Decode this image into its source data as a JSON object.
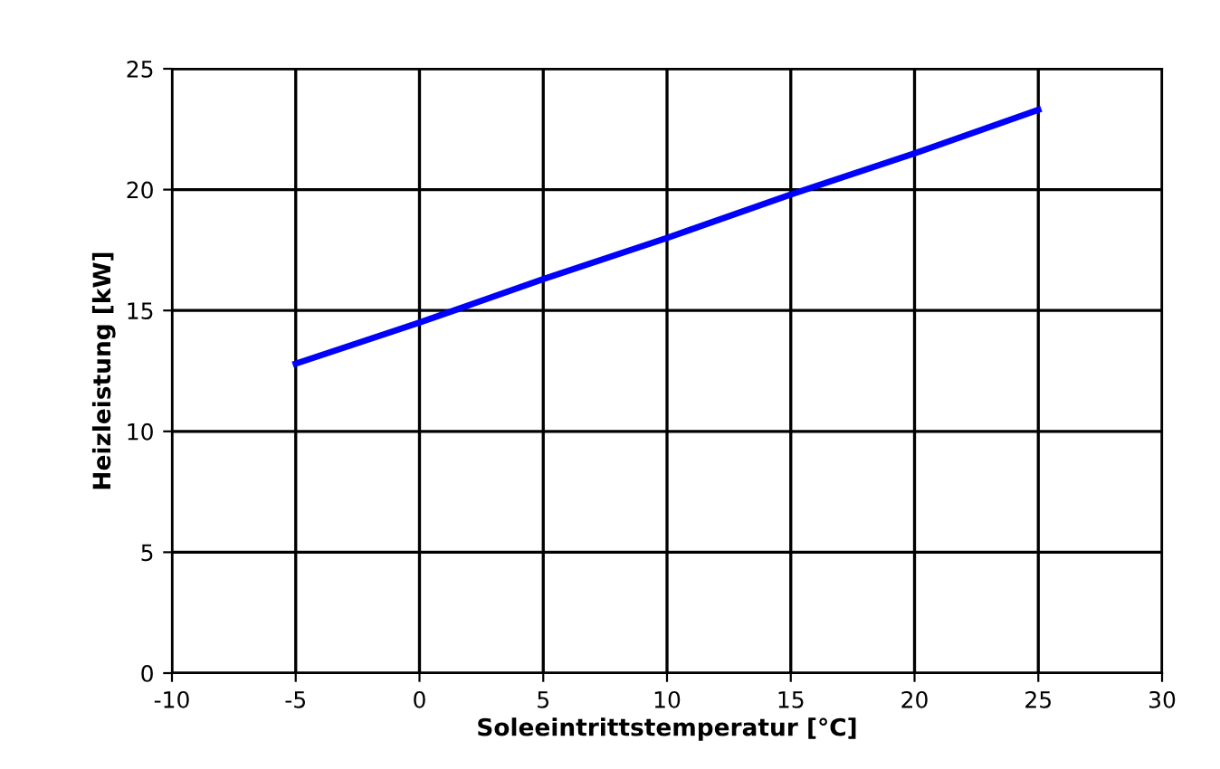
{
  "chart_data": {
    "type": "line",
    "xlabel": "Soleeintrittstemperatur [°C]",
    "ylabel": "Heizleistung [kW]",
    "x": [
      -5,
      0,
      5,
      10,
      15,
      20,
      25
    ],
    "series": [
      {
        "color": "#0000ff",
        "values": [
          12.8,
          14.5,
          16.3,
          18.0,
          19.8,
          21.5,
          23.3
        ]
      }
    ],
    "xlim": [
      -10,
      30
    ],
    "xticks": [
      -10,
      -5,
      0,
      5,
      10,
      15,
      20,
      25,
      30
    ],
    "ylim": [
      0,
      25
    ],
    "yticks": [
      0,
      5,
      10,
      15,
      20,
      25
    ],
    "grid": true,
    "marker": "none",
    "line_style": "solid",
    "legend": false
  }
}
